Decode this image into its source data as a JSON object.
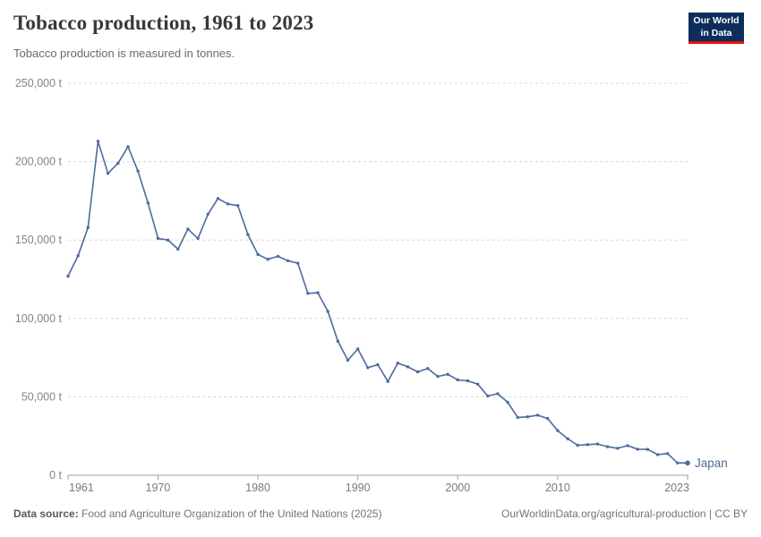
{
  "header": {
    "title": "Tobacco production, 1961 to 2023",
    "subtitle": "Tobacco production is measured in tonnes.",
    "logo": {
      "line1": "Our World",
      "line2": "in Data"
    }
  },
  "chart_data": {
    "type": "line",
    "title": "Tobacco production, 1961 to 2023",
    "ylabel": "tonnes",
    "xlabel": "",
    "xlim": [
      1961,
      2023
    ],
    "ylim": [
      0,
      250000
    ],
    "grid": "horizontal-dashed",
    "legend_position": "end-of-line-label",
    "y_ticks": [
      0,
      50000,
      100000,
      150000,
      200000,
      250000
    ],
    "y_tick_labels": [
      "0 t",
      "50,000 t",
      "100,000 t",
      "150,000 t",
      "200,000 t",
      "250,000 t"
    ],
    "x_ticks": [
      1961,
      1970,
      1980,
      1990,
      2000,
      2010,
      2023
    ],
    "x_tick_labels": [
      "1961",
      "1970",
      "1980",
      "1990",
      "2000",
      "2010",
      "2023"
    ],
    "x": [
      1961,
      1962,
      1963,
      1964,
      1965,
      1966,
      1967,
      1968,
      1969,
      1970,
      1971,
      1972,
      1973,
      1974,
      1975,
      1976,
      1977,
      1978,
      1979,
      1980,
      1981,
      1982,
      1983,
      1984,
      1985,
      1986,
      1987,
      1988,
      1989,
      1990,
      1991,
      1992,
      1993,
      1994,
      1995,
      1996,
      1997,
      1998,
      1999,
      2000,
      2001,
      2002,
      2003,
      2004,
      2005,
      2006,
      2007,
      2008,
      2009,
      2010,
      2011,
      2012,
      2013,
      2014,
      2015,
      2016,
      2017,
      2018,
      2019,
      2020,
      2021,
      2022,
      2023
    ],
    "series": [
      {
        "name": "Japan",
        "color": "#4C6A9C",
        "values": [
          127000,
          140000,
          158000,
          213000,
          192500,
          199000,
          209500,
          194000,
          173700,
          151000,
          150000,
          144200,
          157000,
          151000,
          166500,
          176500,
          173000,
          172000,
          153500,
          140800,
          137700,
          139600,
          136800,
          135200,
          116000,
          116400,
          104500,
          85500,
          73400,
          80500,
          68600,
          70500,
          59800,
          71500,
          69200,
          65900,
          68100,
          63000,
          64400,
          60800,
          60200,
          58100,
          50500,
          52000,
          46500,
          36900,
          37300,
          38300,
          36200,
          28500,
          23300,
          19100,
          19500,
          19900,
          18200,
          17200,
          18900,
          16600,
          16500,
          13200,
          13800,
          7800,
          7800
        ]
      }
    ]
  },
  "footer": {
    "source_label": "Data source:",
    "source_text": " Food and Agriculture Organization of the United Nations (2025)",
    "attribution": "OurWorldinData.org/agricultural-production | CC BY"
  },
  "colors": {
    "line": "#4C6A9C",
    "grid": "#d8d8d8",
    "axis": "#a0a0a0",
    "y_tick_text": "#858585",
    "x_tick_text": "#7a7a7a",
    "title": "#383838",
    "subtitle": "#6b6b6b",
    "footer": "#757575",
    "logo_bg": "#0d2e5c",
    "logo_accent": "#e3120b"
  }
}
